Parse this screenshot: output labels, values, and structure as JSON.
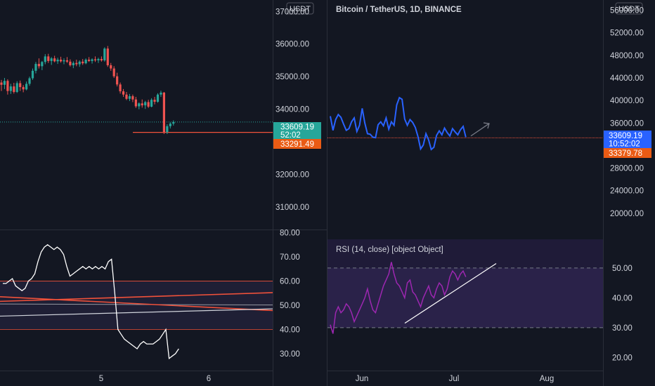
{
  "colors": {
    "background": "#131722",
    "divider": "#2a2e39",
    "axis_text": "#d1d4dc",
    "bull": "#26a69a",
    "bear": "#ef5350",
    "price_line_blue": "#2962ff",
    "rsi_line": "#9c27b0",
    "rsi_band": "#7e57c2",
    "support_orange": "#f0513a",
    "last_price_teal": "#26a69a",
    "last_price_blue": "#2962ff",
    "level_orange": "#ea5b14"
  },
  "left_panel": {
    "currency_label": "USDT",
    "price_ticks": [
      "37000.00",
      "36000.00",
      "35000.00",
      "34000.00",
      "32000.00",
      "31000.00"
    ],
    "last_price": "33609.19",
    "countdown": "52:02",
    "level_price": "33291.49",
    "osc_ticks": [
      "80.00",
      "70.00",
      "60.00",
      "50.00",
      "40.00",
      "30.00"
    ],
    "time_ticks": [
      "5",
      "6"
    ]
  },
  "right_panel": {
    "title": "Bitcoin / TetherUS, 1D, BINANCE",
    "currency_label": "USDT",
    "price_ticks": [
      "56000.00",
      "52000.00",
      "48000.00",
      "44000.00",
      "40000.00",
      "36000.00",
      "28000.00",
      "24000.00",
      "20000.00"
    ],
    "last_price": "33609.19",
    "countdown": "10:52:02",
    "level_price": "33379.78",
    "rsi_title": "RSI (14, close) [object Object]",
    "rsi_ticks": [
      "50.00",
      "40.00",
      "30.00",
      "20.00"
    ],
    "time_ticks": [
      "Jun",
      "Jul",
      "Aug"
    ]
  },
  "chart_data": [
    {
      "type": "candlestick",
      "title": "",
      "ylim": [
        30550,
        37350
      ],
      "y_ticks": [
        31000,
        32000,
        34000,
        35000,
        36000,
        37000
      ],
      "x_ticks": [
        "5",
        "6"
      ],
      "last_price": 33609.19,
      "support_level": 33291.49,
      "series": [
        {
          "name": "",
          "ohlc": [
            [
              34820,
              34900,
              34560,
              34750
            ],
            [
              34750,
              34960,
              34620,
              34870
            ],
            [
              34870,
              34920,
              34450,
              34560
            ],
            [
              34560,
              34780,
              34470,
              34700
            ],
            [
              34700,
              34810,
              34480,
              34530
            ],
            [
              34530,
              34860,
              34500,
              34800
            ],
            [
              34800,
              34880,
              34560,
              34680
            ],
            [
              34680,
              34740,
              34520,
              34610
            ],
            [
              34610,
              34850,
              34580,
              34780
            ],
            [
              34780,
              35000,
              34720,
              34950
            ],
            [
              34950,
              35250,
              34900,
              35180
            ],
            [
              35180,
              35450,
              35100,
              35390
            ],
            [
              35390,
              35560,
              35250,
              35320
            ],
            [
              35320,
              35480,
              35200,
              35450
            ],
            [
              35450,
              35690,
              35380,
              35620
            ],
            [
              35620,
              35700,
              35420,
              35480
            ],
            [
              35480,
              35600,
              35360,
              35560
            ],
            [
              35560,
              35640,
              35440,
              35470
            ],
            [
              35470,
              35580,
              35390,
              35520
            ],
            [
              35520,
              35610,
              35430,
              35470
            ],
            [
              35470,
              35560,
              35380,
              35500
            ],
            [
              35500,
              35600,
              35420,
              35460
            ],
            [
              35460,
              35530,
              35310,
              35350
            ],
            [
              35350,
              35470,
              35260,
              35420
            ],
            [
              35420,
              35520,
              35320,
              35380
            ],
            [
              35380,
              35500,
              35300,
              35460
            ],
            [
              35460,
              35540,
              35360,
              35410
            ],
            [
              35410,
              35560,
              35380,
              35520
            ],
            [
              35520,
              35600,
              35450,
              35480
            ],
            [
              35480,
              35560,
              35400,
              35530
            ],
            [
              35530,
              35620,
              35450,
              35500
            ],
            [
              35500,
              35580,
              35420,
              35540
            ],
            [
              35540,
              35620,
              35460,
              35500
            ],
            [
              35500,
              35900,
              35460,
              35860
            ],
            [
              35860,
              35940,
              35300,
              35350
            ],
            [
              35350,
              35420,
              35180,
              35250
            ],
            [
              35250,
              35320,
              34960,
              35010
            ],
            [
              35010,
              35120,
              34700,
              34760
            ],
            [
              34760,
              34820,
              34480,
              34550
            ],
            [
              34550,
              34620,
              34380,
              34450
            ],
            [
              34450,
              34530,
              34280,
              34320
            ],
            [
              34320,
              34470,
              34250,
              34400
            ],
            [
              34400,
              34450,
              34220,
              34300
            ],
            [
              34300,
              34380,
              34040,
              34090
            ],
            [
              34090,
              34210,
              34000,
              34180
            ],
            [
              34180,
              34300,
              34050,
              34120
            ],
            [
              34120,
              34260,
              34010,
              34220
            ],
            [
              34220,
              34290,
              34040,
              34080
            ],
            [
              34080,
              34340,
              34060,
              34290
            ],
            [
              34290,
              34380,
              34150,
              34230
            ],
            [
              34230,
              34490,
              34200,
              34450
            ],
            [
              34450,
              34570,
              34380,
              34510
            ],
            [
              34510,
              34530,
              33240,
              33300
            ],
            [
              33300,
              33540,
              33240,
              33480
            ],
            [
              33480,
              33600,
              33410,
              33560
            ],
            [
              33560,
              33660,
              33500,
              33609
            ]
          ]
        }
      ]
    },
    {
      "type": "line",
      "title": "",
      "ylim": [
        23,
        81
      ],
      "y_ticks": [
        30,
        40,
        50,
        60,
        70,
        80
      ],
      "bands": [
        40,
        60
      ],
      "series": [
        {
          "name": "",
          "values": [
            59,
            59,
            60,
            61,
            58,
            57,
            56,
            57,
            60,
            61,
            63,
            68,
            72,
            74,
            75,
            74,
            73,
            74,
            73,
            71,
            66,
            62,
            63,
            64,
            65,
            66,
            65,
            66,
            65,
            66,
            65,
            66,
            65,
            68,
            69,
            55,
            40,
            38,
            36,
            35,
            34,
            33,
            32,
            34,
            35,
            34,
            34,
            34,
            35,
            36,
            38,
            40,
            28,
            29,
            30,
            32
          ]
        },
        {
          "name": "",
          "values": [
            50.5,
            50.1
          ]
        },
        {
          "name": "",
          "values": [
            51.6,
            55.2
          ]
        },
        {
          "name": "",
          "values": [
            53.5,
            47.8
          ]
        },
        {
          "name": "",
          "values": [
            45.5,
            48.5
          ]
        }
      ]
    },
    {
      "type": "line",
      "title": "Bitcoin / TetherUS, 1D, BINANCE",
      "ylim": [
        17000,
        57800
      ],
      "y_ticks": [
        20000,
        24000,
        28000,
        36000,
        40000,
        44000,
        48000,
        52000,
        56000
      ],
      "x_ticks": [
        "Jun",
        "Jul",
        "Aug"
      ],
      "last_price": 33609.19,
      "support_level": 33379.78,
      "series": [
        {
          "name": "",
          "values": [
            37200,
            34700,
            36600,
            37500,
            37000,
            35800,
            34700,
            35000,
            36200,
            36900,
            34500,
            35600,
            38600,
            36000,
            34100,
            34000,
            33500,
            33400,
            35700,
            36200,
            35500,
            36900,
            34900,
            36200,
            35600,
            39200,
            40500,
            40200,
            36700,
            35600,
            36600,
            36100,
            35200,
            33600,
            31400,
            32100,
            34100,
            33000,
            31300,
            31700,
            33800,
            34600,
            33900,
            35100,
            34300,
            33700,
            35000,
            34400,
            33900,
            34800,
            35400,
            33500
          ]
        },
        {
          "name": "",
          "values": [
            33700,
            35900
          ]
        }
      ]
    },
    {
      "type": "line",
      "title": "RSI (14, close) [object Object]",
      "ylim": [
        17.5,
        57.5
      ],
      "y_ticks": [
        20,
        30,
        40,
        50
      ],
      "bands": [
        30,
        50
      ],
      "series": [
        {
          "name": "RSI",
          "values": [
            31,
            28,
            35,
            37,
            35,
            36,
            38,
            37,
            35,
            32,
            34,
            36,
            38,
            40,
            43,
            39,
            36,
            35,
            38,
            41,
            44,
            46,
            48,
            52,
            48,
            45,
            44,
            42,
            40,
            45,
            46,
            42,
            41,
            39,
            37,
            40,
            42,
            44,
            41,
            40,
            43,
            45,
            44,
            41,
            43,
            47,
            49,
            48,
            46,
            48,
            49,
            47
          ]
        },
        {
          "name": "",
          "values": [
            31.5,
            51.5
          ]
        }
      ]
    }
  ]
}
